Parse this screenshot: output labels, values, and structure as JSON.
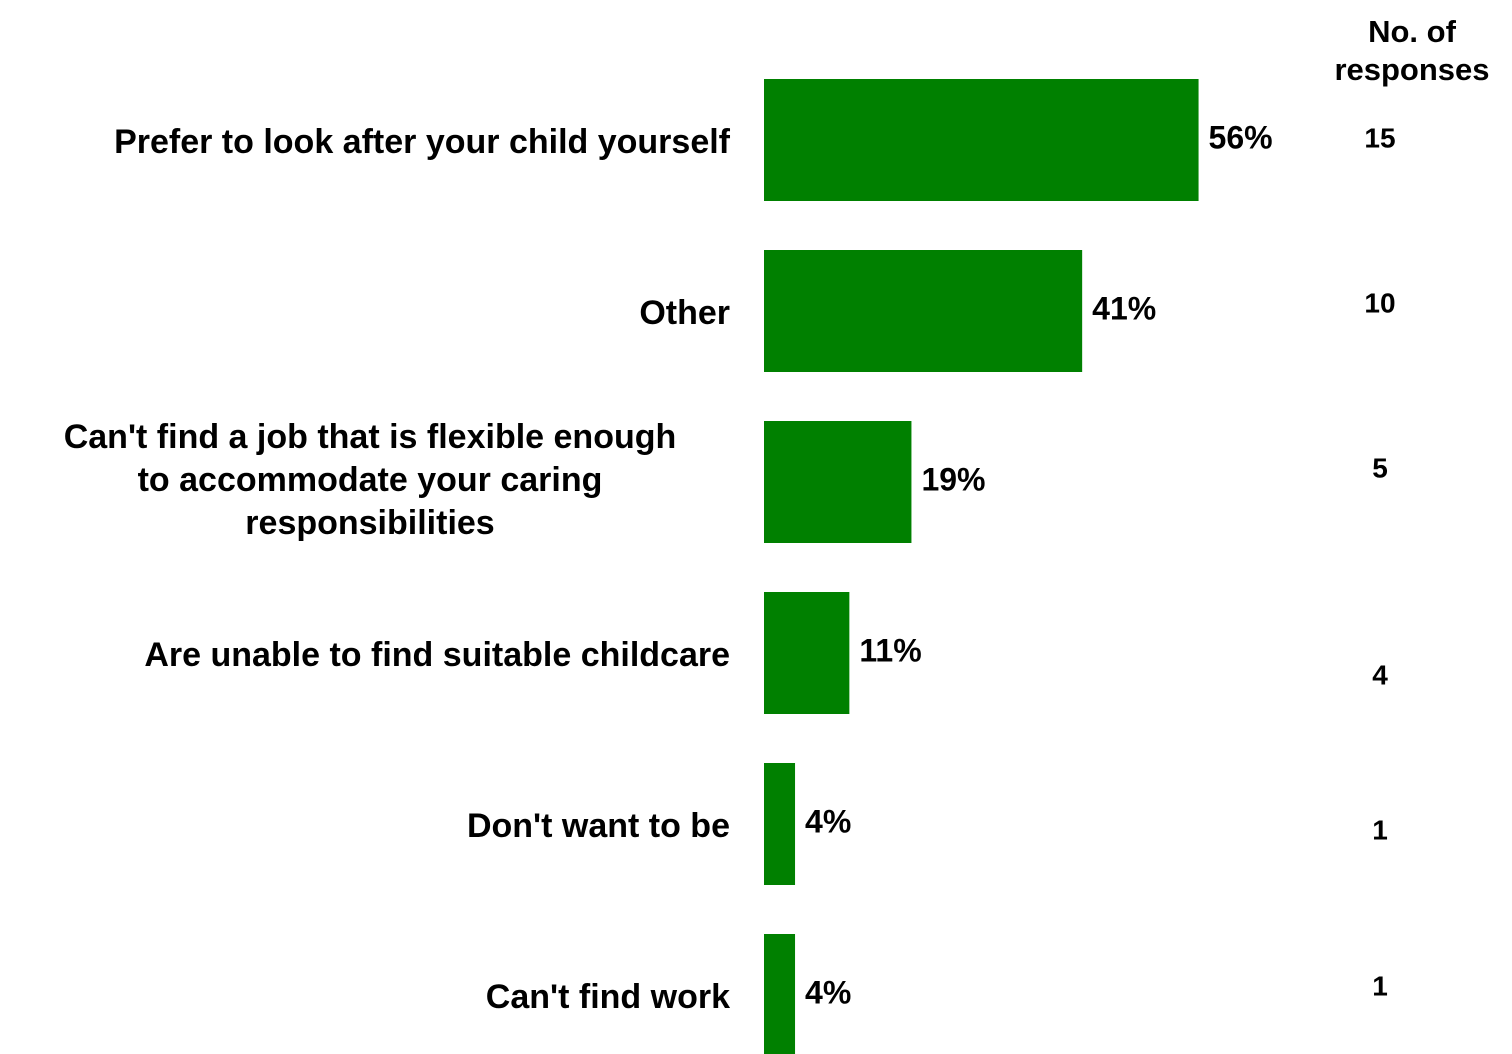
{
  "chart_data": {
    "type": "bar",
    "orientation": "horizontal",
    "categories": [
      "Prefer to look after your child yourself",
      "Other",
      "Can't find a job that is flexible enough to accommodate your caring responsibilities",
      "Are unable to find suitable childcare",
      "Don't want to be",
      "Can't find work"
    ],
    "category_lines": [
      [
        "Prefer to look after your child yourself"
      ],
      [
        "Other"
      ],
      [
        "Can't find a job that is flexible enough",
        "to accommodate your caring",
        "responsibilities"
      ],
      [
        "Are unable to find suitable childcare"
      ],
      [
        "Don't want to be"
      ],
      [
        "Can't find work"
      ]
    ],
    "values": [
      56,
      41,
      19,
      11,
      4,
      4
    ],
    "value_labels": [
      "56%",
      "41%",
      "19%",
      "11%",
      "4%",
      "4%"
    ],
    "responses_header": [
      "No. of",
      "responses"
    ],
    "responses": [
      "15",
      "10",
      "5",
      "4",
      "1",
      "1"
    ],
    "bar_color": "#008000",
    "xlim": [
      0,
      100
    ],
    "grid": false,
    "legend": "none"
  }
}
